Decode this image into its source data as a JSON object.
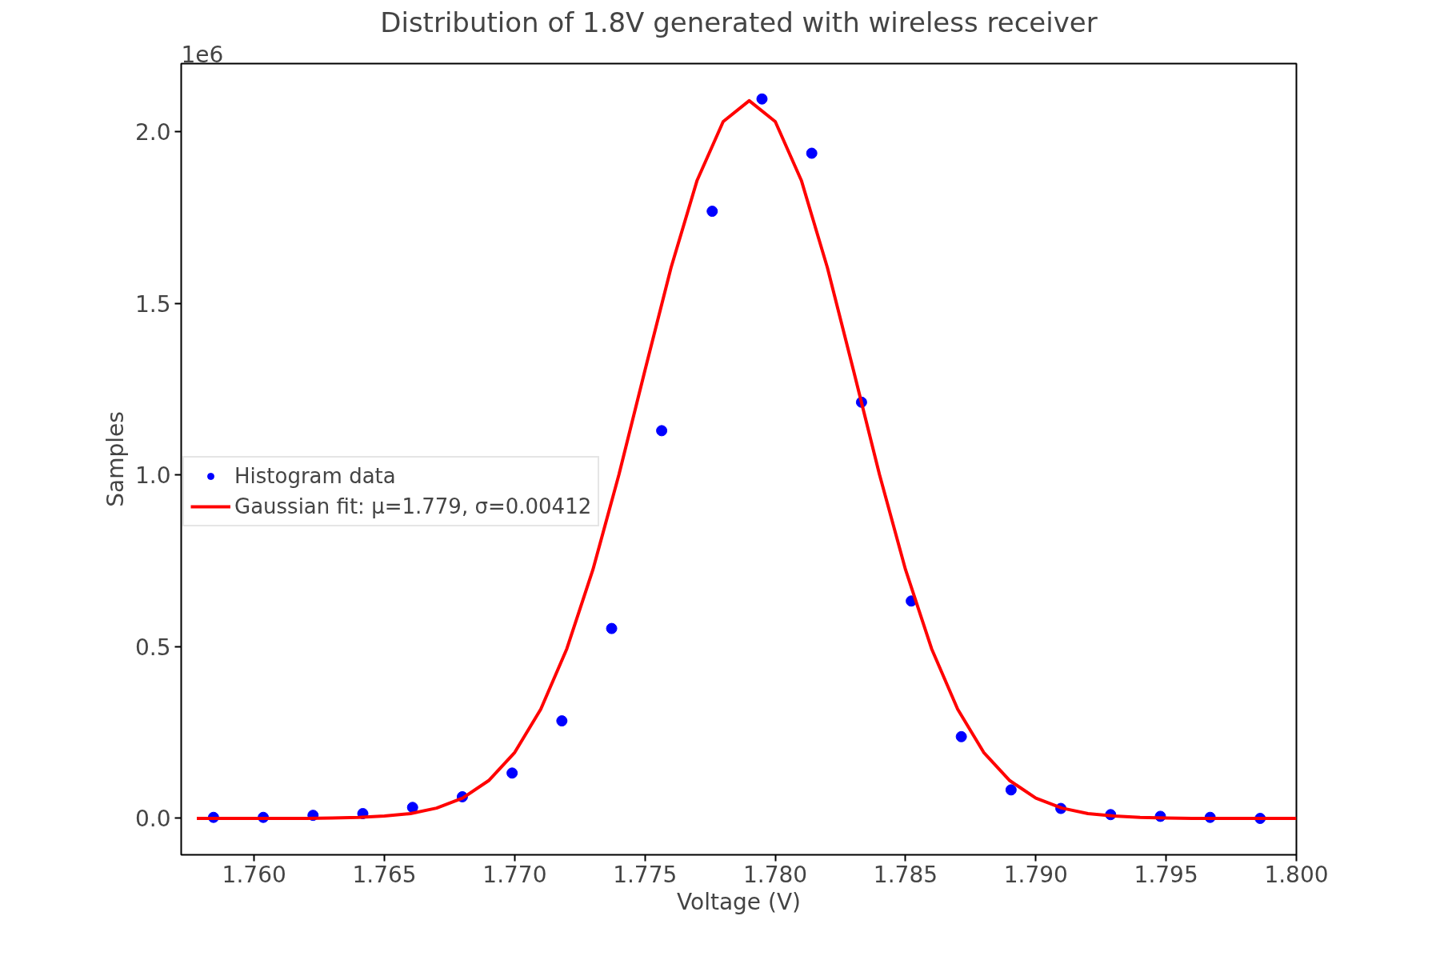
{
  "chart_data": {
    "type": "scatter",
    "title": "Distribution of 1.8V generated with wireless receiver",
    "xlabel": "Voltage (V)",
    "ylabel": "Samples",
    "annotations": [
      "1e6"
    ],
    "series": [
      {
        "name": "Histogram data",
        "marker": "circle",
        "color": "#0000ff",
        "x": [
          1.75844,
          1.76035,
          1.76226,
          1.76417,
          1.76608,
          1.76799,
          1.7699,
          1.77181,
          1.77372,
          1.77564,
          1.77758,
          1.77949,
          1.7814,
          1.78331,
          1.78522,
          1.78714,
          1.78905,
          1.79096,
          1.79287,
          1.79478,
          1.79669,
          1.79861
        ],
        "values": [
          0.003,
          0.003,
          0.009,
          0.014,
          0.032,
          0.063,
          0.132,
          0.284,
          0.553,
          1.129,
          1.768,
          2.095,
          1.937,
          1.212,
          0.633,
          0.238,
          0.083,
          0.029,
          0.011,
          0.006,
          0.003,
          0.0
        ]
      },
      {
        "name": "Gaussian fit: μ=1.779, σ=0.00412",
        "type": "line",
        "marker": "none",
        "line_style": "solid",
        "color": "#ff0000",
        "x": [
          1.7578,
          1.759,
          1.76,
          1.761,
          1.762,
          1.763,
          1.764,
          1.765,
          1.766,
          1.767,
          1.768,
          1.769,
          1.77,
          1.771,
          1.772,
          1.773,
          1.774,
          1.775,
          1.776,
          1.777,
          1.778,
          1.779,
          1.78,
          1.781,
          1.782,
          1.783,
          1.784,
          1.785,
          1.786,
          1.787,
          1.788,
          1.789,
          1.79,
          1.791,
          1.792,
          1.793,
          1.794,
          1.795,
          1.796,
          1.797,
          1.798,
          1.799,
          1.8
        ],
        "values": [
          0,
          0,
          0,
          0,
          0,
          0.001,
          0.003,
          0.007,
          0.014,
          0.03,
          0.059,
          0.11,
          0.192,
          0.318,
          0.494,
          0.724,
          1.001,
          1.305,
          1.604,
          1.858,
          2.029,
          2.09,
          2.029,
          1.858,
          1.604,
          1.305,
          1.001,
          0.724,
          0.494,
          0.318,
          0.192,
          0.11,
          0.059,
          0.03,
          0.014,
          0.007,
          0.003,
          0.001,
          0,
          0,
          0,
          0,
          0
        ]
      }
    ],
    "xlim": [
      1.7572,
      1.8
    ],
    "ylim": [
      -0.106,
      2.198
    ],
    "xticks": [
      {
        "value": 1.76,
        "label": "1.760"
      },
      {
        "value": 1.765,
        "label": "1.765"
      },
      {
        "value": 1.77,
        "label": "1.770"
      },
      {
        "value": 1.775,
        "label": "1.775"
      },
      {
        "value": 1.78,
        "label": "1.780"
      },
      {
        "value": 1.785,
        "label": "1.785"
      },
      {
        "value": 1.79,
        "label": "1.790"
      },
      {
        "value": 1.795,
        "label": "1.795"
      },
      {
        "value": 1.8,
        "label": "1.800"
      }
    ],
    "yticks": [
      {
        "value": 0,
        "label": "0.0"
      },
      0.5,
      {
        "value": 1,
        "label": "1.0"
      },
      1.5,
      {
        "value": 2,
        "label": "2.0"
      }
    ],
    "grid": false,
    "legend": "left"
  }
}
